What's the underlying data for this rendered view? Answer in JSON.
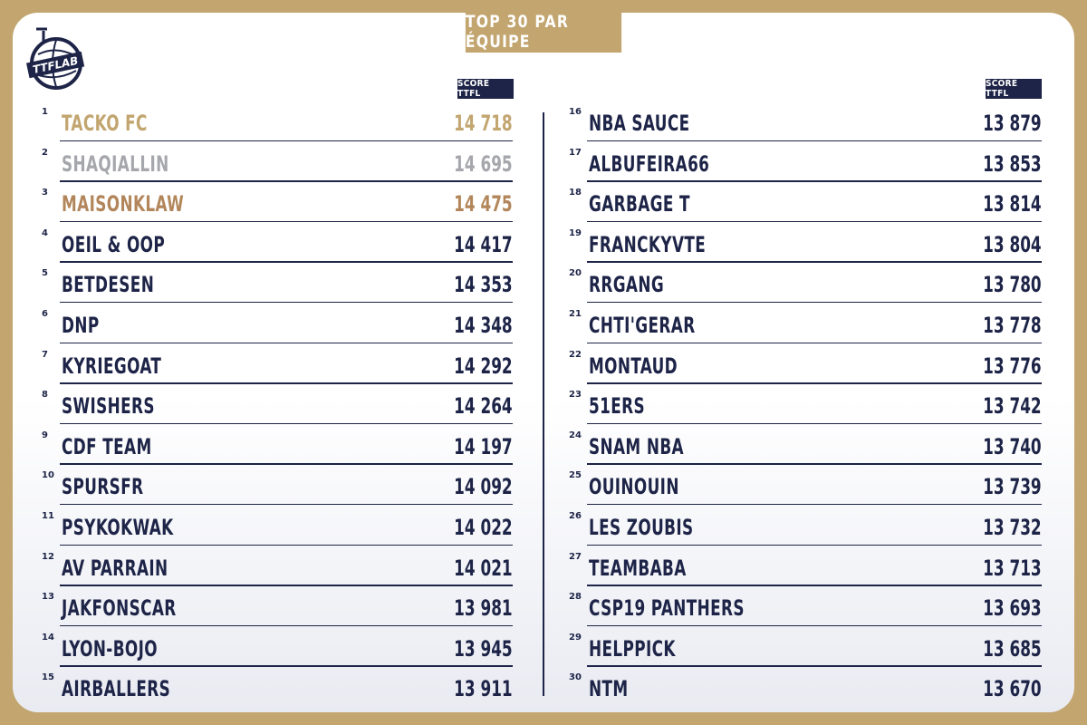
{
  "title": "TOP 30 PAR ÉQUIPE",
  "logo_text": "TTFLAB",
  "column_header": "SCORE TTFL",
  "colors": {
    "frame": "#c2a56f",
    "navy": "#1d2447",
    "gold": "#c2a56f",
    "silver": "#a5a7ad",
    "bronze": "#b2865a"
  },
  "teams": [
    {
      "rank": "1",
      "name": "TACKO FC",
      "score": "14 718",
      "medal": "gold"
    },
    {
      "rank": "2",
      "name": "SHAQIALLIN",
      "score": "14 695",
      "medal": "silver"
    },
    {
      "rank": "3",
      "name": "MAISONKLAW",
      "score": "14 475",
      "medal": "bronze"
    },
    {
      "rank": "4",
      "name": "OEIL & OOP",
      "score": "14 417",
      "medal": ""
    },
    {
      "rank": "5",
      "name": "BETDESEN",
      "score": "14 353",
      "medal": ""
    },
    {
      "rank": "6",
      "name": "DNP",
      "score": "14 348",
      "medal": ""
    },
    {
      "rank": "7",
      "name": "KYRIEGOAT",
      "score": "14 292",
      "medal": ""
    },
    {
      "rank": "8",
      "name": "SWISHERS",
      "score": "14 264",
      "medal": ""
    },
    {
      "rank": "9",
      "name": "CDF TEAM",
      "score": "14 197",
      "medal": ""
    },
    {
      "rank": "10",
      "name": "SPURSFR",
      "score": "14 092",
      "medal": ""
    },
    {
      "rank": "11",
      "name": "PSYKOKWAK",
      "score": "14 022",
      "medal": ""
    },
    {
      "rank": "12",
      "name": "AV PARRAIN",
      "score": "14 021",
      "medal": ""
    },
    {
      "rank": "13",
      "name": "JAKFONSCAR",
      "score": "13 981",
      "medal": ""
    },
    {
      "rank": "14",
      "name": "LYON-BOJO",
      "score": "13 945",
      "medal": ""
    },
    {
      "rank": "15",
      "name": "AIRBALLERS",
      "score": "13 911",
      "medal": ""
    },
    {
      "rank": "16",
      "name": "NBA SAUCE",
      "score": "13 879",
      "medal": ""
    },
    {
      "rank": "17",
      "name": "ALBUFEIRA66",
      "score": "13 853",
      "medal": ""
    },
    {
      "rank": "18",
      "name": "GARBAGE T",
      "score": "13 814",
      "medal": ""
    },
    {
      "rank": "19",
      "name": "FRANCKYVTE",
      "score": "13 804",
      "medal": ""
    },
    {
      "rank": "20",
      "name": "RRGANG",
      "score": "13 780",
      "medal": ""
    },
    {
      "rank": "21",
      "name": "CHTI'GERAR",
      "score": "13 778",
      "medal": ""
    },
    {
      "rank": "22",
      "name": "MONTAUD",
      "score": "13 776",
      "medal": ""
    },
    {
      "rank": "23",
      "name": "51ERS",
      "score": "13 742",
      "medal": ""
    },
    {
      "rank": "24",
      "name": "SNAM NBA",
      "score": "13 740",
      "medal": ""
    },
    {
      "rank": "25",
      "name": "OUINOUIN",
      "score": "13 739",
      "medal": ""
    },
    {
      "rank": "26",
      "name": "LES ZOUBIS",
      "score": "13 732",
      "medal": ""
    },
    {
      "rank": "27",
      "name": "TEAMBABA",
      "score": "13 713",
      "medal": ""
    },
    {
      "rank": "28",
      "name": "CSP19 PANTHERS",
      "score": "13 693",
      "medal": ""
    },
    {
      "rank": "29",
      "name": "HELPPICK",
      "score": "13 685",
      "medal": ""
    },
    {
      "rank": "30",
      "name": "NTM",
      "score": "13 670",
      "medal": ""
    }
  ]
}
